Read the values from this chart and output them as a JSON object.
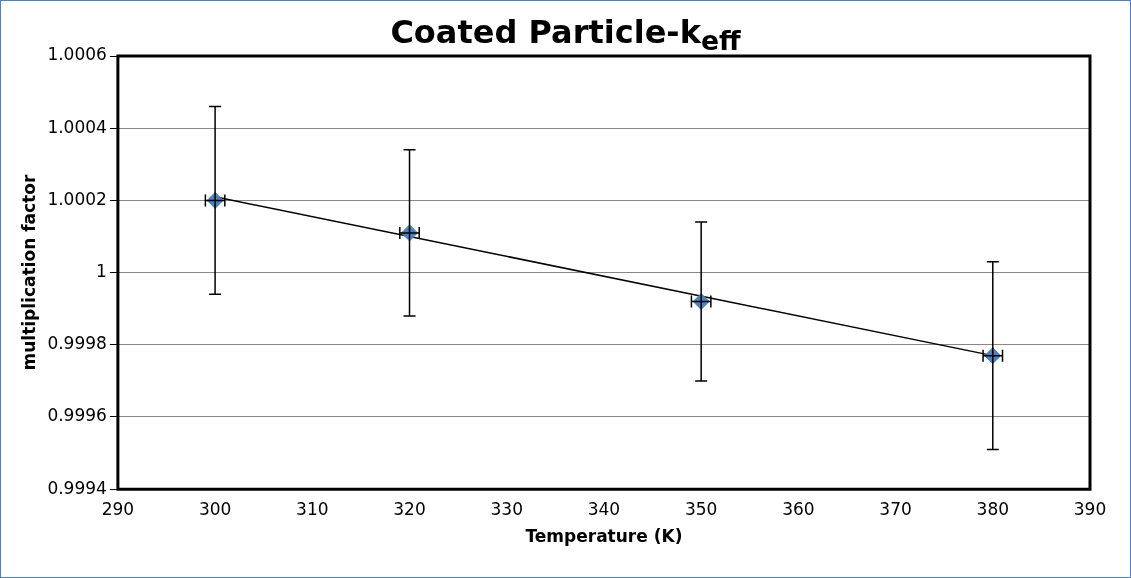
{
  "chart_data": {
    "type": "scatter",
    "title": "Coated Particle-k$_{eff}$",
    "xlabel": "Temperature (K)",
    "ylabel": "multiplication factor",
    "xlim": [
      290,
      390
    ],
    "xticks": [
      290,
      300,
      310,
      320,
      330,
      340,
      350,
      360,
      370,
      380,
      390
    ],
    "ylim": [
      0.9994,
      1.0006
    ],
    "yticks": [
      0.9994,
      0.9996,
      0.9998,
      1,
      1.0002,
      1.0004,
      1.0006
    ],
    "grid": "y",
    "legend": false,
    "series": [
      {
        "type": "scatter",
        "marker": "diamond",
        "color": "#4f81bd",
        "x": [
          300,
          320,
          350,
          380
        ],
        "values": [
          1.0002,
          1.00011,
          0.99992,
          0.99977
        ],
        "errors": [
          [
            0.99994,
            1.00046
          ],
          [
            0.99988,
            1.00034
          ],
          [
            0.9997,
            1.00014
          ],
          [
            0.99951,
            1.00003
          ]
        ],
        "xerrors": [
          1,
          1,
          1,
          1
        ]
      },
      {
        "type": "line",
        "color": "#000000",
        "x": [
          300,
          380
        ],
        "values": [
          1.00021,
          0.99977
        ]
      }
    ]
  }
}
